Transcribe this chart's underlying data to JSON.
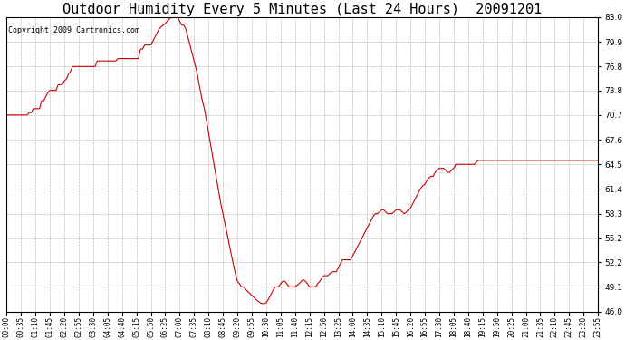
{
  "title": "Outdoor Humidity Every 5 Minutes (Last 24 Hours)  20091201",
  "copyright": "Copyright 2009 Cartronics.com",
  "yticks": [
    46.0,
    49.1,
    52.2,
    55.2,
    58.3,
    61.4,
    64.5,
    67.6,
    70.7,
    73.8,
    76.8,
    79.9,
    83.0
  ],
  "ymin": 46.0,
  "ymax": 83.0,
  "line_color": "#cc0000",
  "bg_color": "#ffffff",
  "grid_color": "#aaaaaa",
  "title_fontsize": 11,
  "copyright_fontsize": 6,
  "xtick_fontsize": 5.5,
  "ytick_fontsize": 6.5,
  "humidity_data": [
    70.7,
    70.7,
    70.7,
    70.7,
    70.7,
    70.7,
    70.7,
    70.7,
    70.7,
    70.7,
    70.7,
    71.0,
    71.0,
    71.5,
    71.5,
    71.5,
    71.5,
    72.5,
    72.5,
    73.0,
    73.5,
    73.8,
    73.8,
    73.8,
    73.8,
    74.5,
    74.5,
    74.5,
    75.0,
    75.2,
    75.8,
    76.2,
    76.8,
    76.8,
    76.8,
    76.8,
    76.8,
    76.8,
    76.8,
    76.8,
    76.8,
    76.8,
    76.8,
    76.8,
    77.5,
    77.5,
    77.5,
    77.5,
    77.5,
    77.5,
    77.5,
    77.5,
    77.5,
    77.5,
    77.8,
    77.8,
    77.8,
    77.8,
    77.8,
    77.8,
    77.8,
    77.8,
    77.8,
    77.8,
    77.8,
    79.0,
    79.0,
    79.5,
    79.5,
    79.5,
    79.5,
    80.0,
    80.5,
    81.0,
    81.5,
    81.8,
    82.0,
    82.2,
    82.5,
    82.8,
    83.0,
    83.0,
    83.0,
    83.0,
    82.5,
    82.0,
    82.0,
    81.5,
    80.5,
    79.5,
    78.5,
    77.5,
    76.5,
    75.2,
    73.8,
    72.5,
    71.5,
    70.0,
    68.5,
    67.0,
    65.5,
    64.0,
    62.5,
    61.0,
    59.5,
    58.3,
    57.0,
    55.8,
    54.5,
    53.2,
    52.0,
    50.8,
    49.8,
    49.5,
    49.1,
    49.1,
    48.8,
    48.5,
    48.3,
    48.0,
    47.8,
    47.5,
    47.3,
    47.1,
    47.0,
    47.0,
    47.1,
    47.5,
    48.0,
    48.5,
    49.0,
    49.1,
    49.1,
    49.5,
    49.8,
    49.8,
    49.5,
    49.1,
    49.1,
    49.1,
    49.1,
    49.3,
    49.5,
    49.8,
    50.0,
    49.8,
    49.5,
    49.1,
    49.1,
    49.1,
    49.1,
    49.5,
    49.8,
    50.2,
    50.5,
    50.5,
    50.5,
    50.8,
    51.0,
    51.0,
    51.0,
    51.5,
    52.0,
    52.5,
    52.5,
    52.5,
    52.5,
    52.5,
    53.0,
    53.5,
    54.0,
    54.5,
    55.0,
    55.5,
    56.0,
    56.5,
    57.0,
    57.5,
    58.0,
    58.3,
    58.3,
    58.5,
    58.8,
    58.8,
    58.5,
    58.3,
    58.3,
    58.3,
    58.5,
    58.8,
    58.8,
    58.8,
    58.5,
    58.3,
    58.5,
    58.8,
    59.0,
    59.5,
    60.0,
    60.5,
    61.0,
    61.5,
    61.8,
    62.0,
    62.5,
    62.8,
    63.0,
    63.0,
    63.5,
    63.8,
    64.0,
    64.0,
    64.0,
    63.8,
    63.5,
    63.5,
    63.8,
    64.0,
    64.5,
    64.5,
    64.5,
    64.5,
    64.5,
    64.5,
    64.5,
    64.5,
    64.5,
    64.5,
    64.8,
    65.0,
    65.0,
    65.0,
    65.0,
    65.0,
    65.0,
    65.0,
    65.0,
    65.0,
    65.0,
    65.0,
    65.0,
    65.0,
    65.0,
    65.0,
    65.0,
    65.0,
    65.0,
    65.0,
    65.0,
    65.0,
    65.0,
    65.0,
    65.0,
    65.0,
    65.0,
    65.0,
    65.0,
    65.0,
    65.0,
    65.0,
    65.0,
    65.0,
    65.0,
    65.0,
    65.0,
    65.0,
    65.0,
    65.0,
    65.0,
    65.0,
    65.0,
    65.0,
    65.0,
    65.0,
    65.0,
    65.0,
    65.0,
    65.0,
    65.0,
    65.0,
    65.0,
    65.0,
    65.0,
    65.0,
    65.0,
    65.0,
    65.0,
    65.0
  ]
}
